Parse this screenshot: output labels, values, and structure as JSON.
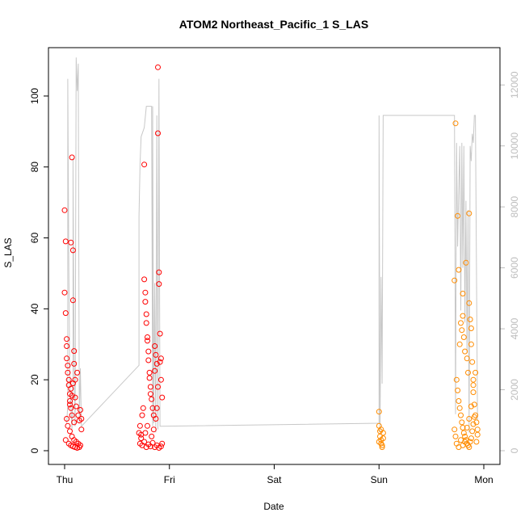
{
  "chart_data": {
    "type": "scatter",
    "title": "ATOM2 Northeast_Pacific_1 S_LAS",
    "xlabel": "Date",
    "ylabel": "S_LAS",
    "x_ticks": [
      "Thu",
      "Fri",
      "Sat",
      "Sun",
      "Mon"
    ],
    "x_range_days": [
      0,
      4
    ],
    "ylim": [
      0,
      110
    ],
    "y_ticks": [
      0,
      20,
      40,
      60,
      80,
      100
    ],
    "y2_ticks": [
      0,
      2000,
      4000,
      6000,
      8000,
      10000,
      12000
    ],
    "y2lim": [
      0,
      12800
    ],
    "grid": false,
    "colors": {
      "series_a": "#ff0000",
      "series_b": "#ff8c00",
      "background_line": "#c8c8c8",
      "right_axis": "#bdbdbd"
    },
    "series": [
      {
        "color": "#ff0000",
        "points": [
          [
            0.0,
            67.8
          ],
          [
            0.0,
            44.6
          ],
          [
            0.01,
            38.8
          ],
          [
            0.01,
            59.0
          ],
          [
            0.02,
            31.5
          ],
          [
            0.02,
            29.5
          ],
          [
            0.02,
            26.0
          ],
          [
            0.03,
            24.0
          ],
          [
            0.03,
            22.0
          ],
          [
            0.04,
            20.0
          ],
          [
            0.04,
            18.5
          ],
          [
            0.05,
            16.0
          ],
          [
            0.05,
            14.0
          ],
          [
            0.06,
            58.7
          ],
          [
            0.06,
            12.0
          ],
          [
            0.07,
            82.7
          ],
          [
            0.07,
            10.0
          ],
          [
            0.08,
            42.4
          ],
          [
            0.08,
            56.5
          ],
          [
            0.09,
            28.1
          ],
          [
            0.09,
            8.0
          ],
          [
            0.1,
            20.0
          ],
          [
            0.1,
            15.0
          ],
          [
            0.11,
            12.5
          ],
          [
            0.12,
            22.0
          ],
          [
            0.13,
            10.0
          ],
          [
            0.14,
            8.5
          ],
          [
            0.02,
            9.0
          ],
          [
            0.03,
            7.0
          ],
          [
            0.05,
            5.5
          ],
          [
            0.07,
            4.0
          ],
          [
            0.09,
            3.0
          ],
          [
            0.11,
            2.5
          ],
          [
            0.13,
            2.0
          ],
          [
            0.15,
            1.5
          ],
          [
            0.01,
            3.0
          ],
          [
            0.04,
            2.0
          ],
          [
            0.06,
            1.5
          ],
          [
            0.08,
            1.2
          ],
          [
            0.1,
            1.0
          ],
          [
            0.12,
            0.8
          ],
          [
            0.14,
            1.0
          ],
          [
            0.16,
            6.0
          ],
          [
            0.16,
            9.0
          ],
          [
            0.15,
            11.5
          ],
          [
            0.05,
            13.0
          ],
          [
            0.06,
            17.5
          ],
          [
            0.07,
            15.5
          ],
          [
            0.08,
            19.0
          ],
          [
            0.09,
            24.5
          ],
          [
            0.71,
            5.0
          ],
          [
            0.72,
            7.0
          ],
          [
            0.73,
            4.5
          ],
          [
            0.74,
            10.0
          ],
          [
            0.75,
            12.0
          ],
          [
            0.76,
            80.7
          ],
          [
            0.76,
            48.3
          ],
          [
            0.77,
            44.6
          ],
          [
            0.77,
            42.0
          ],
          [
            0.78,
            38.5
          ],
          [
            0.78,
            36.0
          ],
          [
            0.79,
            32.0
          ],
          [
            0.79,
            31.0
          ],
          [
            0.8,
            28.0
          ],
          [
            0.8,
            25.5
          ],
          [
            0.81,
            22.0
          ],
          [
            0.81,
            20.5
          ],
          [
            0.82,
            18.0
          ],
          [
            0.82,
            16.0
          ],
          [
            0.83,
            14.5
          ],
          [
            0.84,
            12.0
          ],
          [
            0.85,
            10.0
          ],
          [
            0.86,
            22.5
          ],
          [
            0.86,
            29.5
          ],
          [
            0.87,
            27.0
          ],
          [
            0.88,
            24.5
          ],
          [
            0.89,
            108.1
          ],
          [
            0.89,
            89.5
          ],
          [
            0.9,
            50.3
          ],
          [
            0.9,
            47.0
          ],
          [
            0.91,
            33.0
          ],
          [
            0.92,
            26.0
          ],
          [
            0.92,
            20.0
          ],
          [
            0.93,
            15.0
          ],
          [
            0.88,
            12.0
          ],
          [
            0.87,
            9.0
          ],
          [
            0.72,
            2.0
          ],
          [
            0.74,
            1.5
          ],
          [
            0.76,
            2.5
          ],
          [
            0.78,
            1.0
          ],
          [
            0.8,
            1.8
          ],
          [
            0.82,
            1.2
          ],
          [
            0.84,
            2.2
          ],
          [
            0.86,
            1.0
          ],
          [
            0.88,
            1.5
          ],
          [
            0.9,
            0.8
          ],
          [
            0.92,
            1.2
          ],
          [
            0.93,
            2.0
          ],
          [
            0.73,
            3.5
          ],
          [
            0.77,
            5.0
          ],
          [
            0.79,
            7.0
          ],
          [
            0.83,
            4.0
          ],
          [
            0.85,
            6.0
          ],
          [
            0.89,
            18.0
          ],
          [
            0.91,
            25.0
          ]
        ]
      },
      {
        "color": "#ff8c00",
        "points": [
          [
            3.0,
            11.0
          ],
          [
            3.0,
            7.0
          ],
          [
            3.01,
            5.5
          ],
          [
            3.01,
            4.0
          ],
          [
            3.02,
            3.0
          ],
          [
            3.02,
            2.0
          ],
          [
            3.03,
            1.5
          ],
          [
            3.03,
            1.0
          ],
          [
            3.04,
            3.5
          ],
          [
            3.04,
            5.0
          ],
          [
            3.0,
            2.5
          ],
          [
            3.02,
            6.0
          ],
          [
            3.72,
            48.0
          ],
          [
            3.73,
            92.3
          ],
          [
            3.75,
            66.2
          ],
          [
            3.76,
            51.0
          ],
          [
            3.77,
            30.0
          ],
          [
            3.78,
            36.0
          ],
          [
            3.79,
            34.0
          ],
          [
            3.8,
            44.3
          ],
          [
            3.8,
            38.0
          ],
          [
            3.81,
            32.0
          ],
          [
            3.82,
            28.0
          ],
          [
            3.83,
            53.0
          ],
          [
            3.84,
            26.0
          ],
          [
            3.85,
            22.0
          ],
          [
            3.86,
            66.9
          ],
          [
            3.86,
            41.6
          ],
          [
            3.87,
            37.0
          ],
          [
            3.88,
            34.5
          ],
          [
            3.88,
            30.0
          ],
          [
            3.89,
            25.0
          ],
          [
            3.9,
            20.0
          ],
          [
            3.9,
            16.5
          ],
          [
            3.91,
            13.0
          ],
          [
            3.92,
            10.0
          ],
          [
            3.93,
            8.0
          ],
          [
            3.94,
            6.0
          ],
          [
            3.94,
            4.5
          ],
          [
            3.93,
            2.5
          ],
          [
            3.74,
            20.0
          ],
          [
            3.75,
            17.0
          ],
          [
            3.76,
            14.0
          ],
          [
            3.77,
            12.0
          ],
          [
            3.78,
            10.0
          ],
          [
            3.79,
            8.0
          ],
          [
            3.8,
            6.5
          ],
          [
            3.81,
            5.0
          ],
          [
            3.82,
            4.0
          ],
          [
            3.83,
            3.0
          ],
          [
            3.84,
            2.0
          ],
          [
            3.85,
            1.5
          ],
          [
            3.86,
            1.0
          ],
          [
            3.87,
            2.5
          ],
          [
            3.88,
            3.5
          ],
          [
            3.89,
            5.5
          ],
          [
            3.9,
            7.5
          ],
          [
            3.91,
            9.5
          ],
          [
            3.72,
            6.0
          ],
          [
            3.73,
            4.0
          ],
          [
            3.74,
            2.0
          ],
          [
            3.76,
            1.0
          ],
          [
            3.78,
            3.0
          ],
          [
            3.8,
            1.5
          ],
          [
            3.82,
            2.5
          ],
          [
            3.84,
            6.5
          ],
          [
            3.86,
            9.0
          ],
          [
            3.88,
            12.5
          ],
          [
            3.9,
            18.5
          ],
          [
            3.92,
            22.0
          ]
        ]
      }
    ],
    "background_line": {
      "color": "#c8c8c8",
      "axis": "right",
      "points": [
        [
          0.02,
          900
        ],
        [
          0.03,
          1500
        ],
        [
          0.03,
          12200
        ],
        [
          0.04,
          6000
        ],
        [
          0.05,
          2200
        ],
        [
          0.07,
          700
        ],
        [
          0.08,
          2400
        ],
        [
          0.08,
          9600
        ],
        [
          0.09,
          3000
        ],
        [
          0.1,
          800
        ],
        [
          0.11,
          12900
        ],
        [
          0.12,
          11800
        ],
        [
          0.13,
          12700
        ],
        [
          0.14,
          900
        ],
        [
          0.15,
          2700
        ],
        [
          0.71,
          2800
        ],
        [
          0.71,
          7700
        ],
        [
          0.72,
          9400
        ],
        [
          0.73,
          10300
        ],
        [
          0.75,
          10500
        ],
        [
          0.76,
          10600
        ],
        [
          0.78,
          11300
        ],
        [
          0.83,
          11300
        ],
        [
          0.84,
          800
        ],
        [
          0.84,
          11300
        ],
        [
          0.85,
          900
        ],
        [
          0.86,
          5500
        ],
        [
          0.87,
          600
        ],
        [
          0.88,
          11000
        ],
        [
          0.89,
          700
        ],
        [
          0.9,
          12200
        ],
        [
          0.91,
          800
        ],
        [
          0.16,
          800
        ],
        [
          3.0,
          900
        ],
        [
          3.0,
          11000
        ],
        [
          3.01,
          600
        ],
        [
          3.02,
          5700
        ],
        [
          3.03,
          2200
        ],
        [
          3.04,
          11000
        ],
        [
          3.72,
          11000
        ],
        [
          3.73,
          1200
        ],
        [
          3.74,
          10100
        ],
        [
          3.75,
          6700
        ],
        [
          3.76,
          8500
        ],
        [
          3.77,
          10000
        ],
        [
          3.78,
          4600
        ],
        [
          3.79,
          10100
        ],
        [
          3.8,
          6000
        ],
        [
          3.81,
          10000
        ],
        [
          3.82,
          4200
        ],
        [
          3.83,
          8200
        ],
        [
          3.84,
          3200
        ],
        [
          3.85,
          7900
        ],
        [
          3.86,
          600
        ],
        [
          3.87,
          10000
        ],
        [
          3.88,
          9500
        ],
        [
          3.89,
          10400
        ],
        [
          3.9,
          10100
        ],
        [
          3.91,
          11000
        ],
        [
          3.92,
          11000
        ],
        [
          3.94,
          1000
        ]
      ]
    }
  }
}
